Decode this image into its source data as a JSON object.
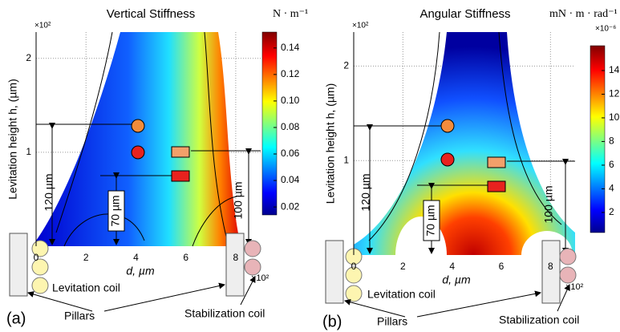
{
  "chart_data": [
    {
      "type": "heatmap",
      "title": "Vertical Stiffness",
      "colorbar_label": "N · m⁻¹",
      "x_label": "d, µm",
      "y_label": "Levitation height h, (µm)",
      "y_multiplier": "×10²",
      "x_multiplier": "×10²",
      "xlim": [
        0,
        9
      ],
      "xticks": [
        0,
        2,
        4,
        6,
        8
      ],
      "ylim": [
        0,
        2.28
      ],
      "yticks": [
        1,
        2
      ],
      "grid": true,
      "clim": [
        0.014,
        0.152
      ],
      "cticks": [
        0.02,
        0.04,
        0.06,
        0.08,
        {
          "value": 0.1,
          "label": "0.10"
        },
        0.12,
        0.14
      ],
      "annotations": [
        "120 µm",
        "70 µm",
        "100 µm",
        "Levitation coil",
        "Pillars",
        "Stabilization coil",
        "(a)"
      ]
    },
    {
      "type": "heatmap",
      "title": "Angular Stiffness",
      "colorbar_label": "mN · m · rad⁻¹",
      "colorbar_multiplier": "×10⁻⁶",
      "x_label": "d, µm",
      "y_label": "Levitation height h, (µm)",
      "y_multiplier": "×10²",
      "x_multiplier": "×10²",
      "xlim": [
        0,
        9
      ],
      "xticks": [
        0,
        2,
        4,
        6,
        8
      ],
      "ylim": [
        0,
        2.36
      ],
      "yticks": [
        1,
        2
      ],
      "grid": true,
      "clim": [
        0.3,
        16.1
      ],
      "cticks": [
        2,
        4,
        6,
        8,
        10,
        12,
        14
      ],
      "annotations": [
        "120 µm",
        "70 µm",
        "100 µm",
        "Levitation coil",
        "Pillars",
        "Stabilization coil",
        "(b)"
      ]
    }
  ]
}
